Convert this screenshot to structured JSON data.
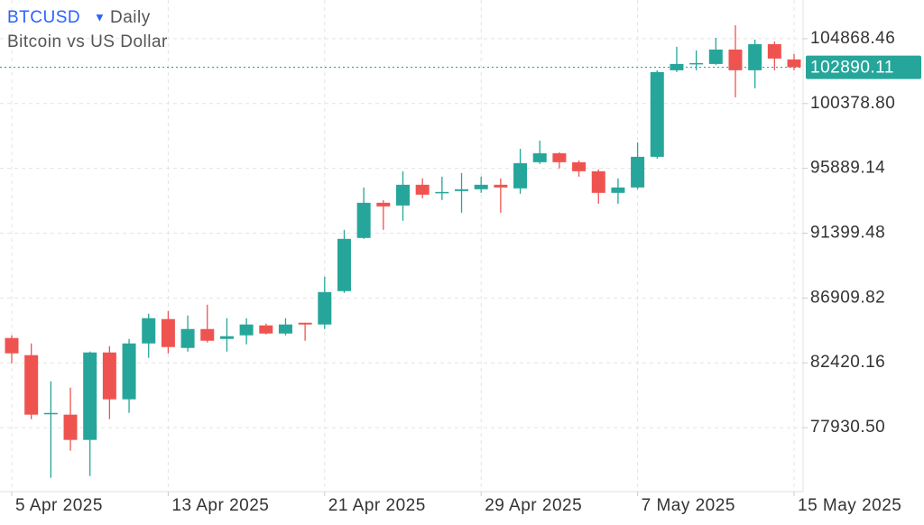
{
  "chart_data": {
    "type": "candlestick",
    "title": "BTCUSD",
    "interval": "Daily",
    "subtitle": "Bitcoin vs US Dollar",
    "categories": [
      "5 Apr 2025",
      null,
      null,
      null,
      null,
      null,
      null,
      null,
      "13 Apr 2025",
      null,
      null,
      null,
      null,
      null,
      null,
      null,
      "21 Apr 2025",
      null,
      null,
      null,
      null,
      null,
      null,
      null,
      "29 Apr 2025",
      null,
      null,
      null,
      null,
      null,
      null,
      null,
      "7 May 2025",
      null,
      null,
      null,
      null,
      null,
      null,
      null,
      "15 May 2025"
    ],
    "open": [
      84138,
      82952,
      78890,
      78831,
      77082,
      83139,
      79892,
      83763,
      85449,
      83451,
      84762,
      84076,
      84325,
      85012,
      84450,
      85199,
      85075,
      87385,
      91069,
      93504,
      93317,
      94753,
      94191,
      94316,
      94441,
      94753,
      94503,
      96314,
      96938,
      96314,
      95689,
      94191,
      94565,
      96688,
      102683,
      103120,
      103120,
      104119,
      102683,
      104493,
      103432
    ],
    "high": [
      84325,
      83763,
      81141,
      80704,
      83200,
      83576,
      84076,
      85824,
      86011,
      85699,
      86448,
      85512,
      85512,
      85137,
      85512,
      85199,
      88384,
      91631,
      94565,
      93691,
      95689,
      95190,
      95315,
      95565,
      95315,
      95190,
      97250,
      97812,
      97001,
      96439,
      95814,
      95190,
      97687,
      102683,
      104306,
      104056,
      104931,
      105805,
      104806,
      104681,
      103807
    ],
    "low": [
      82390,
      78518,
      74460,
      76333,
      74585,
      78518,
      78955,
      82764,
      83077,
      83201,
      83826,
      83201,
      83701,
      84388,
      84325,
      83951,
      84762,
      87260,
      91006,
      91631,
      92255,
      93816,
      93691,
      92817,
      94191,
      92817,
      94128,
      96189,
      95877,
      95315,
      93442,
      93442,
      94441,
      96564,
      102558,
      102683,
      103057,
      100809,
      101434,
      102683,
      102683
    ],
    "close": [
      83077,
      78831,
      78950,
      77082,
      83139,
      79892,
      83763,
      85512,
      83514,
      84762,
      83951,
      84263,
      85075,
      84450,
      85075,
      85075,
      87322,
      91006,
      93504,
      93254,
      94753,
      94066,
      94253,
      94441,
      94753,
      94565,
      96251,
      96938,
      96314,
      95689,
      94191,
      94565,
      96688,
      102558,
      103120,
      103182,
      104119,
      102683,
      104493,
      103494,
      102890.11
    ],
    "up_color": "#26a69a",
    "down_color": "#ef5350",
    "last_price": 102890.11,
    "ylim": [
      73500,
      107550
    ],
    "yticks": [
      {
        "value": 77930.5,
        "label": "77930.50"
      },
      82420.16,
      86909.82,
      91399.48,
      95889.14,
      {
        "value": 100378.8,
        "label": "100378.80"
      },
      104868.46
    ],
    "grid": true
  }
}
